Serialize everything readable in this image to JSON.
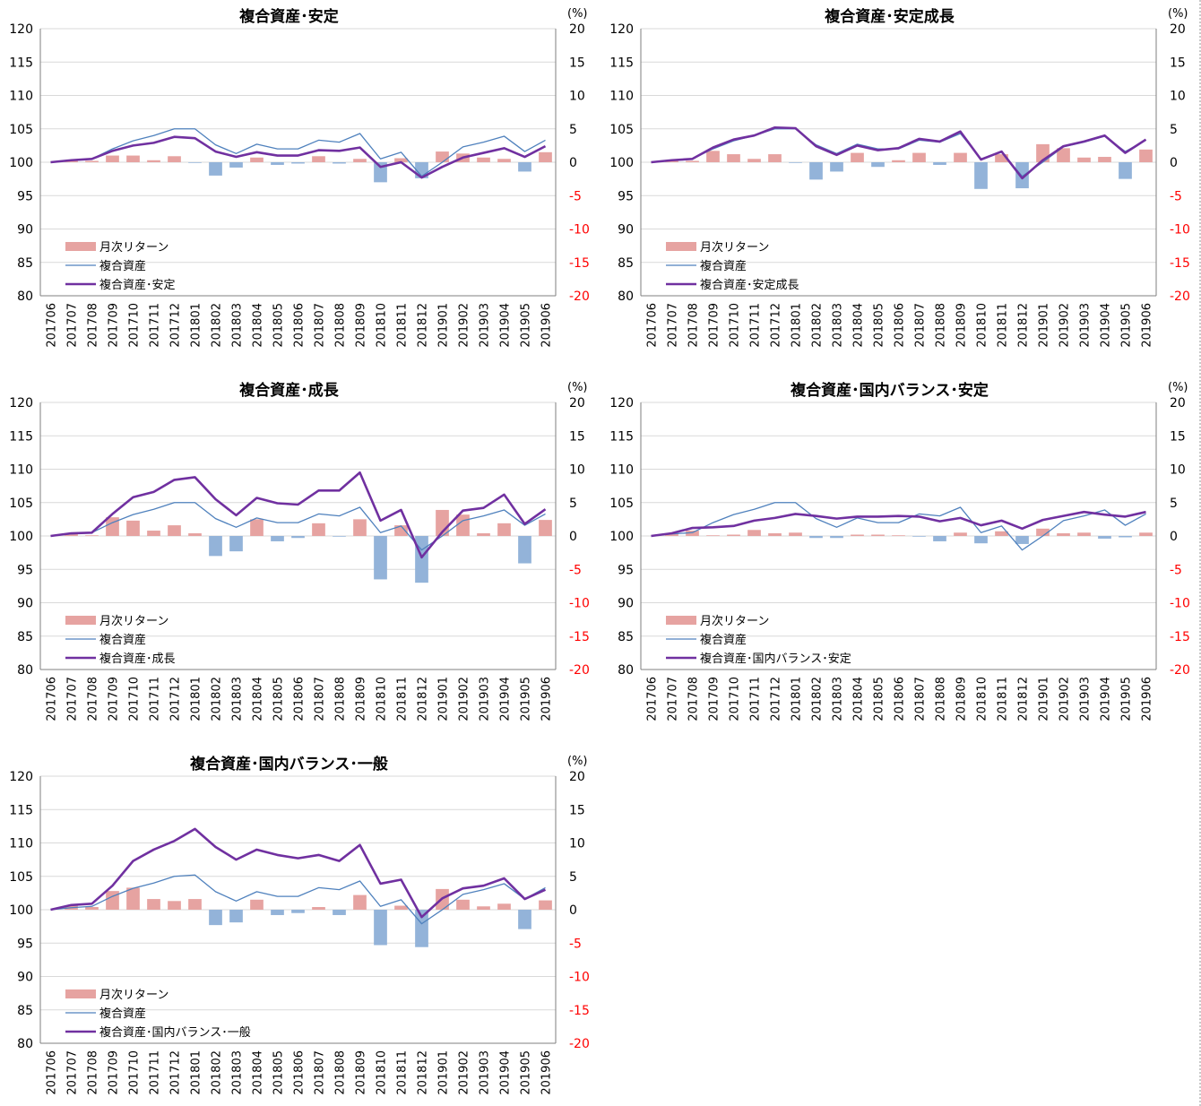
{
  "colors": {
    "bar_positive": "#e6a3a1",
    "bar_negative": "#93b3d9",
    "line_composite": "#4f81bd",
    "line_fund": "#7030a0",
    "right_axis_negative": "#ff0000",
    "grid": "#d9d9d9"
  },
  "chart_data": [
    {
      "type": "bar+line",
      "title": "複合資産･安定",
      "right_axis_unit": "(%)",
      "categories": [
        "201706",
        "201707",
        "201708",
        "201709",
        "201710",
        "201711",
        "201712",
        "201801",
        "201802",
        "201803",
        "201804",
        "201805",
        "201806",
        "201807",
        "201808",
        "201809",
        "201810",
        "201811",
        "201812",
        "201901",
        "201902",
        "201903",
        "201904",
        "201905",
        "201906"
      ],
      "left_ylim": [
        80,
        120
      ],
      "left_ticks": [
        80,
        85,
        90,
        95,
        100,
        105,
        110,
        115,
        120
      ],
      "right_ylim": [
        -20,
        20
      ],
      "right_ticks": [
        -20,
        -15,
        -10,
        -5,
        0,
        5,
        10,
        15,
        20
      ],
      "legend": [
        "月次リターン",
        "複合資産",
        "複合資産･安定"
      ],
      "legend_position": "bottom-left",
      "series": [
        {
          "name": "月次リターン",
          "axis": "right",
          "kind": "bar",
          "values": [
            0,
            0.3,
            0.2,
            1.0,
            1.0,
            0.3,
            0.9,
            -0.1,
            -2.0,
            -0.8,
            0.7,
            -0.4,
            -0.2,
            0.9,
            -0.2,
            0.5,
            -3.0,
            0.6,
            -2.4,
            1.6,
            1.3,
            0.7,
            0.5,
            -1.4,
            1.5
          ]
        },
        {
          "name": "複合資産",
          "axis": "left",
          "kind": "line",
          "values": [
            100,
            100.3,
            100.5,
            102.0,
            103.2,
            104.0,
            105.0,
            105.0,
            102.6,
            101.3,
            102.7,
            102.0,
            102.0,
            103.3,
            103.0,
            104.3,
            100.5,
            101.5,
            97.9,
            100.0,
            102.3,
            103.0,
            103.9,
            101.6,
            103.3
          ]
        },
        {
          "name": "複合資産･安定",
          "axis": "left",
          "kind": "line",
          "values": [
            100,
            100.3,
            100.5,
            101.7,
            102.5,
            102.9,
            103.8,
            103.6,
            101.6,
            100.8,
            101.5,
            101.0,
            101.0,
            101.8,
            101.7,
            102.2,
            99.3,
            100.0,
            97.7,
            99.3,
            100.7,
            101.4,
            102.1,
            100.8,
            102.4
          ]
        }
      ]
    },
    {
      "type": "bar+line",
      "title": "複合資産･安定成長",
      "right_axis_unit": "(%)",
      "categories": [
        "201706",
        "201707",
        "201708",
        "201709",
        "201710",
        "201711",
        "201712",
        "201801",
        "201802",
        "201803",
        "201804",
        "201805",
        "201806",
        "201807",
        "201808",
        "201809",
        "201810",
        "201811",
        "201812",
        "201901",
        "201902",
        "201903",
        "201904",
        "201905",
        "201906"
      ],
      "left_ylim": [
        80,
        120
      ],
      "left_ticks": [
        80,
        85,
        90,
        95,
        100,
        105,
        110,
        115,
        120
      ],
      "right_ylim": [
        -20,
        20
      ],
      "right_ticks": [
        -20,
        -15,
        -10,
        -5,
        0,
        5,
        10,
        15,
        20
      ],
      "legend": [
        "月次リターン",
        "複合資産",
        "複合資産･安定成長"
      ],
      "legend_position": "bottom-left",
      "series": [
        {
          "name": "月次リターン",
          "axis": "right",
          "kind": "bar",
          "values": [
            0,
            0.3,
            0.2,
            1.7,
            1.2,
            0.5,
            1.2,
            -0.1,
            -2.6,
            -1.4,
            1.4,
            -0.7,
            0.3,
            1.4,
            -0.4,
            1.4,
            -4.0,
            1.2,
            -3.9,
            2.7,
            2.1,
            0.7,
            0.8,
            -2.5,
            1.9
          ]
        },
        {
          "name": "複合資産",
          "axis": "left",
          "kind": "line",
          "values": [
            100,
            100.3,
            100.5,
            102.0,
            103.2,
            104.0,
            105.0,
            105.0,
            102.6,
            101.3,
            102.7,
            102.0,
            102.0,
            103.3,
            103.0,
            104.3,
            100.5,
            101.5,
            97.9,
            100.0,
            102.3,
            103.0,
            103.9,
            101.6,
            103.3
          ]
        },
        {
          "name": "複合資産･安定成長",
          "axis": "left",
          "kind": "line",
          "values": [
            100,
            100.3,
            100.5,
            102.2,
            103.4,
            104.0,
            105.2,
            105.1,
            102.4,
            101.1,
            102.5,
            101.8,
            102.1,
            103.5,
            103.1,
            104.6,
            100.4,
            101.6,
            97.6,
            100.3,
            102.4,
            103.1,
            104.0,
            101.4,
            103.4
          ]
        }
      ]
    },
    {
      "type": "bar+line",
      "title": "複合資産･成長",
      "right_axis_unit": "(%)",
      "categories": [
        "201706",
        "201707",
        "201708",
        "201709",
        "201710",
        "201711",
        "201712",
        "201801",
        "201802",
        "201803",
        "201804",
        "201805",
        "201806",
        "201807",
        "201808",
        "201809",
        "201810",
        "201811",
        "201812",
        "201901",
        "201902",
        "201903",
        "201904",
        "201905",
        "201906"
      ],
      "left_ylim": [
        80,
        120
      ],
      "left_ticks": [
        80,
        85,
        90,
        95,
        100,
        105,
        110,
        115,
        120
      ],
      "right_ylim": [
        -20,
        20
      ],
      "right_ticks": [
        -20,
        -15,
        -10,
        -5,
        0,
        5,
        10,
        15,
        20
      ],
      "legend": [
        "月次リターン",
        "複合資産",
        "複合資産･成長"
      ],
      "legend_position": "bottom-left",
      "series": [
        {
          "name": "月次リターン",
          "axis": "right",
          "kind": "bar",
          "values": [
            0,
            0.4,
            0.1,
            2.8,
            2.3,
            0.8,
            1.6,
            0.4,
            -3.0,
            -2.3,
            2.5,
            -0.8,
            -0.3,
            1.9,
            -0.1,
            2.5,
            -6.5,
            1.6,
            -7.0,
            3.9,
            3.2,
            0.4,
            1.9,
            -4.1,
            2.4
          ]
        },
        {
          "name": "複合資産",
          "axis": "left",
          "kind": "line",
          "values": [
            100,
            100.3,
            100.5,
            102.0,
            103.2,
            104.0,
            105.0,
            105.0,
            102.6,
            101.3,
            102.7,
            102.0,
            102.0,
            103.3,
            103.0,
            104.3,
            100.5,
            101.5,
            97.9,
            100.0,
            102.3,
            103.0,
            103.9,
            101.6,
            103.3
          ]
        },
        {
          "name": "複合資産･成長",
          "axis": "left",
          "kind": "line",
          "values": [
            100,
            100.4,
            100.5,
            103.3,
            105.8,
            106.6,
            108.4,
            108.8,
            105.5,
            103.1,
            105.7,
            104.9,
            104.7,
            106.8,
            106.8,
            109.5,
            102.3,
            103.9,
            96.8,
            100.6,
            103.8,
            104.2,
            106.2,
            101.8,
            104.0
          ]
        }
      ]
    },
    {
      "type": "bar+line",
      "title": "複合資産･国内バランス･安定",
      "right_axis_unit": "(%)",
      "categories": [
        "201706",
        "201707",
        "201708",
        "201709",
        "201710",
        "201711",
        "201712",
        "201801",
        "201802",
        "201803",
        "201804",
        "201805",
        "201806",
        "201807",
        "201808",
        "201809",
        "201810",
        "201811",
        "201812",
        "201901",
        "201902",
        "201903",
        "201904",
        "201905",
        "201906"
      ],
      "left_ylim": [
        80,
        120
      ],
      "left_ticks": [
        80,
        85,
        90,
        95,
        100,
        105,
        110,
        115,
        120
      ],
      "right_ylim": [
        -20,
        20
      ],
      "right_ticks": [
        -20,
        -15,
        -10,
        -5,
        0,
        5,
        10,
        15,
        20
      ],
      "legend": [
        "月次リターン",
        "複合資産",
        "複合資産･国内バランス･安定"
      ],
      "legend_position": "bottom-left",
      "series": [
        {
          "name": "月次リターン",
          "axis": "right",
          "kind": "bar",
          "values": [
            0,
            0.4,
            0.8,
            0.1,
            0.2,
            0.9,
            0.4,
            0.5,
            -0.3,
            -0.3,
            0.2,
            0.2,
            0.1,
            -0.1,
            -0.8,
            0.5,
            -1.1,
            0.7,
            -1.2,
            1.1,
            0.4,
            0.5,
            -0.4,
            -0.2,
            0.5
          ]
        },
        {
          "name": "複合資産",
          "axis": "left",
          "kind": "line",
          "values": [
            100,
            100.3,
            100.5,
            102.0,
            103.2,
            104.0,
            105.0,
            105.0,
            102.6,
            101.3,
            102.7,
            102.0,
            102.0,
            103.3,
            103.0,
            104.3,
            100.5,
            101.5,
            97.9,
            100.0,
            102.3,
            103.0,
            103.9,
            101.6,
            103.3
          ]
        },
        {
          "name": "複合資産･国内バランス･安定",
          "axis": "left",
          "kind": "line",
          "values": [
            100,
            100.4,
            101.2,
            101.3,
            101.5,
            102.3,
            102.7,
            103.3,
            103.0,
            102.6,
            102.9,
            102.9,
            103.0,
            102.9,
            102.2,
            102.7,
            101.6,
            102.3,
            101.1,
            102.4,
            103.0,
            103.6,
            103.2,
            102.9,
            103.6
          ]
        }
      ]
    },
    {
      "type": "bar+line",
      "title": "複合資産･国内バランス･一般",
      "right_axis_unit": "(%)",
      "categories": [
        "201706",
        "201707",
        "201708",
        "201709",
        "201710",
        "201711",
        "201712",
        "201801",
        "201802",
        "201803",
        "201804",
        "201805",
        "201806",
        "201807",
        "201808",
        "201809",
        "201810",
        "201811",
        "201812",
        "201901",
        "201902",
        "201903",
        "201904",
        "201905",
        "201906"
      ],
      "left_ylim": [
        80,
        120
      ],
      "left_ticks": [
        80,
        85,
        90,
        95,
        100,
        105,
        110,
        115,
        120
      ],
      "right_ylim": [
        -20,
        20
      ],
      "right_ticks": [
        -20,
        -15,
        -10,
        -5,
        0,
        5,
        10,
        15,
        20
      ],
      "legend": [
        "月次リターン",
        "複合資産",
        "複合資産･国内バランス･一般"
      ],
      "legend_position": "bottom-left",
      "series": [
        {
          "name": "月次リターン",
          "axis": "right",
          "kind": "bar",
          "values": [
            0,
            0.6,
            0.4,
            2.8,
            3.3,
            1.6,
            1.3,
            1.6,
            -2.3,
            -1.9,
            1.5,
            -0.8,
            -0.5,
            0.4,
            -0.8,
            2.2,
            -5.3,
            0.6,
            -5.6,
            3.1,
            1.5,
            0.5,
            0.9,
            -2.9,
            1.4
          ]
        },
        {
          "name": "複合資産",
          "axis": "left",
          "kind": "line",
          "values": [
            100,
            100.3,
            100.5,
            102.0,
            103.2,
            104.0,
            105.0,
            105.2,
            102.7,
            101.3,
            102.7,
            102.0,
            102.0,
            103.3,
            103.0,
            104.3,
            100.5,
            101.5,
            97.9,
            100.0,
            102.3,
            103.0,
            103.9,
            101.6,
            103.3
          ]
        },
        {
          "name": "複合資産･国内バランス･一般",
          "axis": "left",
          "kind": "line",
          "values": [
            100,
            100.7,
            100.9,
            103.6,
            107.3,
            109.0,
            110.3,
            112.1,
            109.4,
            107.5,
            109.0,
            108.2,
            107.7,
            108.2,
            107.3,
            109.7,
            103.9,
            104.5,
            98.9,
            101.7,
            103.2,
            103.6,
            104.7,
            101.6,
            103.0
          ]
        }
      ]
    }
  ]
}
